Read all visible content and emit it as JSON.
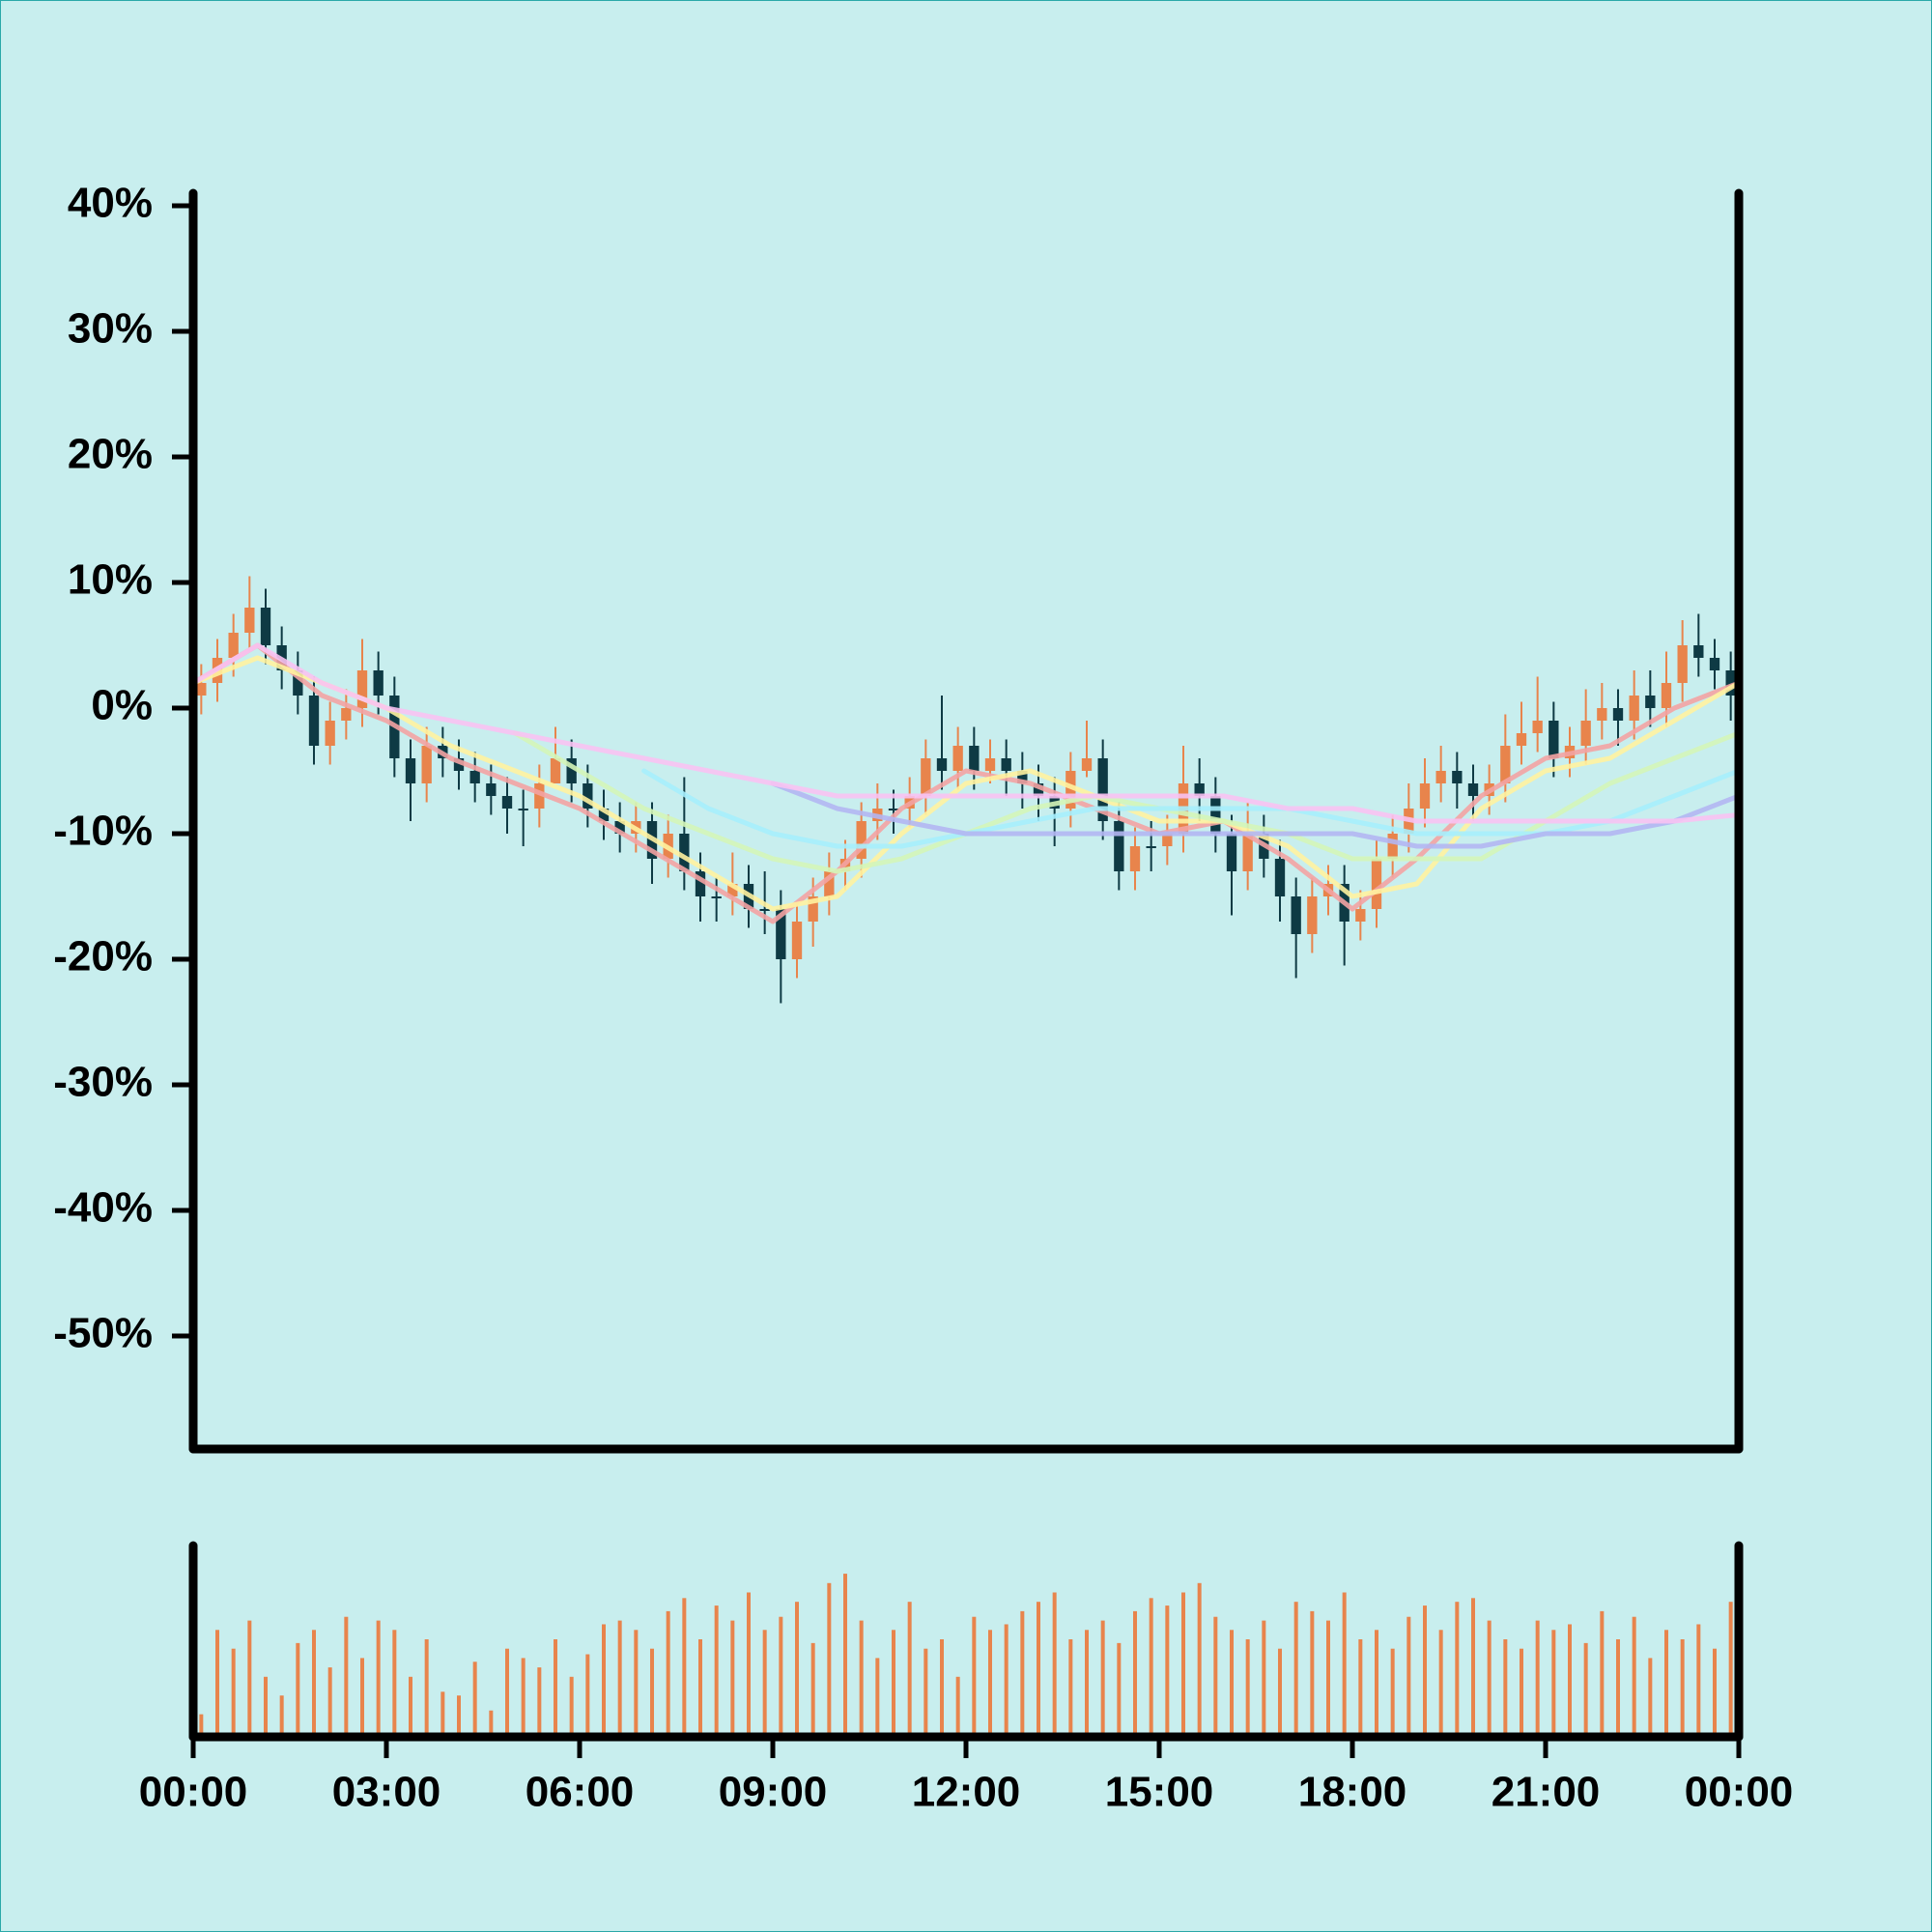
{
  "chart_data": {
    "type": "candlestick",
    "xlim": [
      0,
      24
    ],
    "xticks": [
      {
        "value": 0,
        "label": "00:00"
      },
      {
        "value": 3,
        "label": "03:00"
      },
      {
        "value": 6,
        "label": "06:00"
      },
      {
        "value": 9,
        "label": "09:00"
      },
      {
        "value": 12,
        "label": "12:00"
      },
      {
        "value": 15,
        "label": "15:00"
      },
      {
        "value": 18,
        "label": "18:00"
      },
      {
        "value": 21,
        "label": "21:00"
      },
      {
        "value": 24,
        "label": "00:00"
      }
    ],
    "ylim": [
      -59,
      41
    ],
    "yticks": [
      {
        "value": 40,
        "label": "40%"
      },
      {
        "value": 30,
        "label": "30%"
      },
      {
        "value": 20,
        "label": "20%"
      },
      {
        "value": 10,
        "label": "10%"
      },
      {
        "value": 0,
        "label": "0%"
      },
      {
        "value": -10,
        "label": "-10%"
      },
      {
        "value": -20,
        "label": "-20%"
      },
      {
        "value": -30,
        "label": "-30%"
      },
      {
        "value": -40,
        "label": "-40%"
      },
      {
        "value": -50,
        "label": "-50%"
      }
    ],
    "up_color": "#e8844c",
    "down_color": "#0e3a44",
    "volume_color": "#e8844c",
    "volume_ylim": [
      0,
      100
    ],
    "x": [
      0.125,
      0.375,
      0.625,
      0.875,
      1.125,
      1.375,
      1.625,
      1.875,
      2.125,
      2.375,
      2.625,
      2.875,
      3.125,
      3.375,
      3.625,
      3.875,
      4.125,
      4.375,
      4.625,
      4.875,
      5.125,
      5.375,
      5.625,
      5.875,
      6.125,
      6.375,
      6.625,
      6.875,
      7.125,
      7.375,
      7.625,
      7.875,
      8.125,
      8.375,
      8.625,
      8.875,
      9.125,
      9.375,
      9.625,
      9.875,
      10.125,
      10.375,
      10.625,
      10.875,
      11.125,
      11.375,
      11.625,
      11.875,
      12.125,
      12.375,
      12.625,
      12.875,
      13.125,
      13.375,
      13.625,
      13.875,
      14.125,
      14.375,
      14.625,
      14.875,
      15.125,
      15.375,
      15.625,
      15.875,
      16.125,
      16.375,
      16.625,
      16.875,
      17.125,
      17.375,
      17.625,
      17.875,
      18.125,
      18.375,
      18.625,
      18.875,
      19.125,
      19.375,
      19.625,
      19.875,
      20.125,
      20.375,
      20.625,
      20.875,
      21.125,
      21.375,
      21.625,
      21.875,
      22.125,
      22.375,
      22.625,
      22.875,
      23.125,
      23.375,
      23.625,
      23.875
    ],
    "open": [
      1,
      2,
      4,
      6,
      8,
      5,
      3,
      1,
      -3,
      -1,
      0,
      3,
      1,
      -4,
      -6,
      -3,
      -4,
      -5,
      -6,
      -7,
      -8,
      -8,
      -6,
      -4,
      -6,
      -8,
      -9,
      -10,
      -9,
      -12,
      -10,
      -13,
      -15,
      -15,
      -14,
      -16,
      -16,
      -20,
      -17,
      -15,
      -13,
      -12,
      -9,
      -8,
      -8,
      -7,
      -4,
      -5,
      -3,
      -5,
      -4,
      -5,
      -6,
      -7,
      -8,
      -5,
      -4,
      -9,
      -13,
      -11,
      -11,
      -10,
      -6,
      -7,
      -10,
      -13,
      -10,
      -12,
      -15,
      -18,
      -15,
      -14,
      -17,
      -16,
      -12,
      -10,
      -8,
      -6,
      -5,
      -6,
      -7,
      -6,
      -3,
      -2,
      -1,
      -4,
      -3,
      -1,
      0,
      -1,
      1,
      0,
      2,
      5,
      4,
      3
    ],
    "high": [
      3.5,
      5.5,
      7.5,
      10.5,
      9.5,
      6.5,
      4.5,
      2.5,
      0.5,
      1.5,
      5.5,
      4.5,
      2.5,
      -2.5,
      -1.5,
      -1.5,
      -2.5,
      -3.5,
      -4.5,
      -5.5,
      -6.5,
      -4.5,
      -1.5,
      -2.5,
      -4.5,
      -6.5,
      -7.5,
      -7.5,
      -7.5,
      -8.5,
      -5.5,
      -11.5,
      -13.5,
      -11.5,
      -12.5,
      -13,
      -14.5,
      -15.5,
      -13.5,
      -11.5,
      -10.5,
      -7.5,
      -6,
      -6.5,
      -5.5,
      -2.5,
      1,
      -1.5,
      -1.5,
      -2.5,
      -2.5,
      -3.5,
      -4.5,
      -5.5,
      -3.5,
      -1,
      -2.5,
      -7.5,
      -9.5,
      -9,
      -8.5,
      -3,
      -4,
      -5.5,
      -8.5,
      -7.5,
      -8.5,
      -10.5,
      -13.5,
      -13.5,
      -12.5,
      -12.5,
      -14.5,
      -10.5,
      -8.5,
      -6,
      -4,
      -3,
      -3.5,
      -4.5,
      -4.5,
      -0.5,
      0.5,
      2.5,
      0.5,
      -1.5,
      1.5,
      2,
      1.5,
      3,
      3,
      4.5,
      7,
      7.5,
      5.5,
      4.5
    ],
    "low": [
      -0.5,
      0.5,
      2.5,
      4.5,
      3.5,
      1.5,
      -0.5,
      -4.5,
      -4.5,
      -2.5,
      -1.5,
      -0.5,
      -5.5,
      -9,
      -7.5,
      -5.5,
      -6.5,
      -7.5,
      -8.5,
      -10,
      -11,
      -9.5,
      -5.5,
      -7.5,
      -9.5,
      -10.5,
      -11.5,
      -11.5,
      -14,
      -13.5,
      -14.5,
      -17,
      -17,
      -16.5,
      -17.5,
      -18,
      -23.5,
      -21.5,
      -19,
      -16.5,
      -14.5,
      -13.5,
      -10.5,
      -10,
      -9.5,
      -8.5,
      -6.5,
      -6.5,
      -6.5,
      -6,
      -7,
      -8,
      -9,
      -11,
      -9.5,
      -5.5,
      -10.5,
      -14.5,
      -14.5,
      -13,
      -12.5,
      -11.5,
      -9,
      -11.5,
      -16.5,
      -14.5,
      -13.5,
      -17,
      -21.5,
      -19.5,
      -16.5,
      -20.5,
      -18.5,
      -17.5,
      -13.5,
      -11.5,
      -9.5,
      -7.5,
      -8,
      -9,
      -8.5,
      -7.5,
      -4.5,
      -3.5,
      -5.5,
      -5.5,
      -4.5,
      -2.5,
      -3,
      -2.5,
      -1.5,
      -1.5,
      0.5,
      2.5,
      1.5,
      -1
    ],
    "close": [
      2,
      4,
      6,
      8,
      5,
      3,
      1,
      -3,
      -1,
      0,
      3,
      1,
      -4,
      -6,
      -3,
      -4,
      -5,
      -6,
      -7,
      -8,
      -8,
      -6,
      -4,
      -6,
      -8,
      -9,
      -10,
      -9,
      -12,
      -10,
      -13,
      -15,
      -15,
      -14,
      -16,
      -16,
      -20,
      -17,
      -15,
      -13,
      -12,
      -9,
      -8,
      -8,
      -7,
      -4,
      -5,
      -3,
      -5,
      -4,
      -5,
      -6,
      -7,
      -8,
      -5,
      -4,
      -9,
      -13,
      -11,
      -11,
      -10,
      -6,
      -7,
      -10,
      -13,
      -10,
      -12,
      -15,
      -18,
      -15,
      -14,
      -17,
      -16,
      -12,
      -10,
      -8,
      -6,
      -5,
      -6,
      -7,
      -6,
      -3,
      -2,
      -1,
      -4,
      -3,
      -1,
      0,
      -1,
      1,
      0,
      2,
      5,
      4,
      3,
      1
    ],
    "volume": [
      10,
      55,
      45,
      60,
      30,
      20,
      48,
      55,
      35,
      62,
      40,
      60,
      55,
      30,
      50,
      22,
      20,
      38,
      12,
      45,
      40,
      35,
      50,
      30,
      42,
      58,
      60,
      55,
      45,
      65,
      72,
      50,
      68,
      60,
      75,
      55,
      62,
      70,
      48,
      80,
      85,
      60,
      40,
      55,
      70,
      45,
      50,
      30,
      62,
      55,
      58,
      65,
      70,
      75,
      50,
      55,
      60,
      48,
      65,
      72,
      68,
      75,
      80,
      62,
      55,
      50,
      60,
      45,
      70,
      65,
      60,
      75,
      50,
      55,
      45,
      62,
      68,
      55,
      70,
      72,
      60,
      50,
      45,
      60,
      55,
      58,
      48,
      65,
      50,
      62,
      40,
      55,
      50,
      58,
      45,
      70
    ],
    "series": [
      {
        "color": "#f3a3a3",
        "x": [
          0,
          1,
          2,
          3,
          4,
          5,
          6,
          7,
          8,
          9,
          10,
          11,
          12,
          13,
          14,
          15,
          16,
          17,
          18,
          19,
          20,
          21,
          22,
          23,
          24
        ],
        "values": [
          2,
          5,
          1,
          -1,
          -4,
          -6,
          -8,
          -11,
          -14,
          -17,
          -13,
          -8,
          -5,
          -6,
          -8,
          -10,
          -9,
          -12,
          -16,
          -12,
          -7,
          -4,
          -3,
          0,
          2
        ]
      },
      {
        "color": "#fff2a0",
        "x": [
          0,
          1,
          2,
          3,
          4,
          5,
          6,
          7,
          8,
          9,
          10,
          11,
          12,
          13,
          14,
          15,
          16,
          17,
          18,
          19,
          20,
          21,
          22,
          23,
          24
        ],
        "values": [
          2,
          4,
          2,
          0,
          -3,
          -5,
          -7,
          -10,
          -13,
          -16,
          -15,
          -10,
          -6,
          -5,
          -7,
          -9,
          -9,
          -11,
          -15,
          -14,
          -8,
          -5,
          -4,
          -1,
          2
        ]
      },
      {
        "color": "#d4f5b8",
        "x": [
          0,
          1,
          2,
          3,
          4,
          5,
          6,
          7,
          8,
          9,
          10,
          11,
          12,
          13,
          14,
          15,
          16,
          17,
          18,
          19,
          20,
          21,
          22,
          23,
          24
        ],
        "values": [
          null,
          null,
          null,
          null,
          null,
          -2,
          -5,
          -8,
          -10,
          -12,
          -13,
          -12,
          -10,
          -8,
          -7,
          -8,
          -9,
          -10,
          -12,
          -12,
          -12,
          -9,
          -6,
          -4,
          -2
        ]
      },
      {
        "color": "#a6eefc",
        "x": [
          0,
          1,
          2,
          3,
          4,
          5,
          6,
          7,
          8,
          9,
          10,
          11,
          12,
          13,
          14,
          15,
          16,
          17,
          18,
          19,
          20,
          21,
          22,
          23,
          24
        ],
        "values": [
          null,
          null,
          null,
          null,
          null,
          null,
          null,
          -5,
          -8,
          -10,
          -11,
          -11,
          -10,
          -9,
          -8,
          -8,
          -8,
          -8,
          -9,
          -10,
          -10,
          -10,
          -9,
          -7,
          -5
        ]
      },
      {
        "color": "#b2b6f2",
        "x": [
          0,
          1,
          2,
          3,
          4,
          5,
          6,
          7,
          8,
          9,
          10,
          11,
          12,
          13,
          14,
          15,
          16,
          17,
          18,
          19,
          20,
          21,
          22,
          23,
          24
        ],
        "values": [
          null,
          null,
          null,
          null,
          null,
          null,
          null,
          null,
          null,
          -6,
          -8,
          -9,
          -10,
          -10,
          -10,
          -10,
          -10,
          -10,
          -10,
          -11,
          -11,
          -10,
          -10,
          -9,
          -7
        ]
      },
      {
        "color": "#f8c2f2",
        "x": [
          0,
          1,
          2,
          3,
          4,
          5,
          6,
          7,
          8,
          9,
          10,
          11,
          12,
          13,
          14,
          15,
          16,
          17,
          18,
          19,
          20,
          21,
          22,
          23,
          24
        ],
        "values": [
          2,
          5,
          2,
          0,
          -1,
          -2,
          -3,
          -4,
          -5,
          -6,
          -7,
          -7,
          -7,
          -7,
          -7,
          -7,
          -7,
          -8,
          -8,
          -9,
          -9,
          -9,
          -9,
          -9,
          -8.5
        ]
      }
    ]
  }
}
